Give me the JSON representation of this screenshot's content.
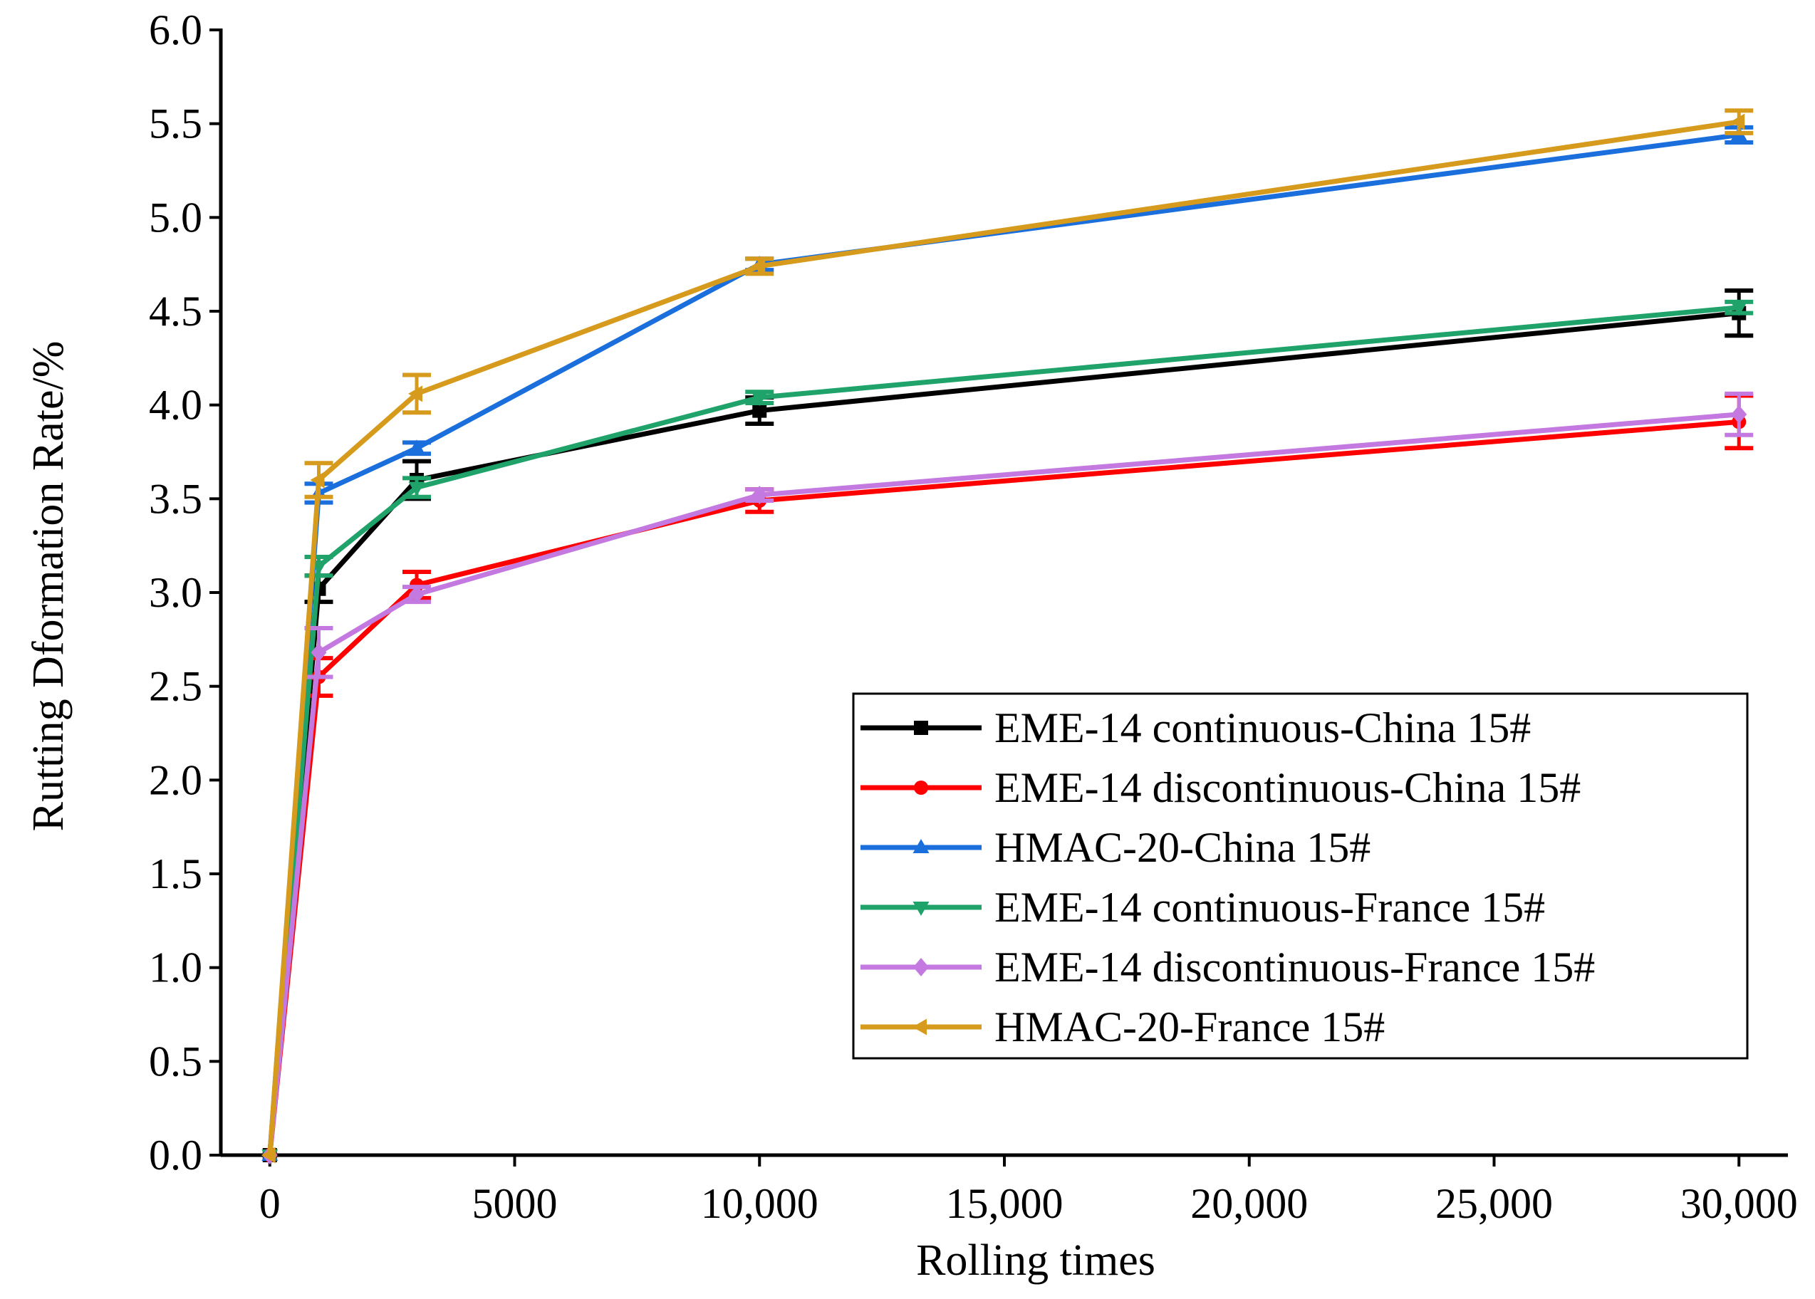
{
  "chart_data": {
    "type": "line",
    "title": "",
    "xlabel": "Rolling times",
    "ylabel": "Rutting Dformation Rate/%",
    "xlim": [
      -1000,
      31000
    ],
    "ylim": [
      0,
      6.0
    ],
    "x": [
      0,
      1000,
      3000,
      10000,
      30000
    ],
    "xticks": [
      0,
      5000,
      10000,
      15000,
      20000,
      25000,
      30000
    ],
    "xtick_labels": [
      "0",
      "5000",
      "10,000",
      "15,000",
      "20,000",
      "25,000",
      "30,000"
    ],
    "yticks": [
      0,
      0.5,
      1.0,
      1.5,
      2.0,
      2.5,
      3.0,
      3.5,
      4.0,
      4.5,
      5.0,
      5.5,
      6.0
    ],
    "ytick_labels": [
      "0.0",
      "0.5",
      "1.0",
      "1.5",
      "2.0",
      "2.5",
      "3.0",
      "3.5",
      "4.0",
      "4.5",
      "5.0",
      "5.5",
      "6.0"
    ],
    "legend_position": "bottom-right",
    "series": [
      {
        "name": "EME-14 continuous-China 15#",
        "color": "#000000",
        "marker": "square",
        "values": [
          0,
          3.02,
          3.6,
          3.97,
          4.49
        ],
        "errors": [
          0,
          0.07,
          0.1,
          0.07,
          0.12
        ]
      },
      {
        "name": "EME-14 discontinuous-China 15#",
        "color": "#ff0000",
        "marker": "circle",
        "values": [
          0,
          2.55,
          3.04,
          3.49,
          3.91
        ],
        "errors": [
          0,
          0.1,
          0.07,
          0.06,
          0.14
        ]
      },
      {
        "name": "HMAC-20-China 15#",
        "color": "#1b6fdc",
        "marker": "triangle-up",
        "values": [
          0,
          3.53,
          3.77,
          4.75,
          5.44
        ],
        "errors": [
          0,
          0.05,
          0.03,
          0.03,
          0.04
        ]
      },
      {
        "name": "EME-14 continuous-France 15#",
        "color": "#1fa36a",
        "marker": "triangle-down",
        "values": [
          0,
          3.14,
          3.56,
          4.04,
          4.52
        ],
        "errors": [
          0,
          0.05,
          0.05,
          0.03,
          0.03
        ]
      },
      {
        "name": "EME-14 discontinuous-France 15#",
        "color": "#c379e0",
        "marker": "diamond",
        "values": [
          0,
          2.68,
          2.99,
          3.52,
          3.95
        ],
        "errors": [
          0,
          0.13,
          0.04,
          0.03,
          0.11
        ]
      },
      {
        "name": "HMAC-20-France 15#",
        "color": "#d69a1c",
        "marker": "triangle-left",
        "values": [
          0,
          3.6,
          4.06,
          4.74,
          5.51
        ],
        "errors": [
          0,
          0.09,
          0.1,
          0.04,
          0.06
        ]
      }
    ]
  }
}
